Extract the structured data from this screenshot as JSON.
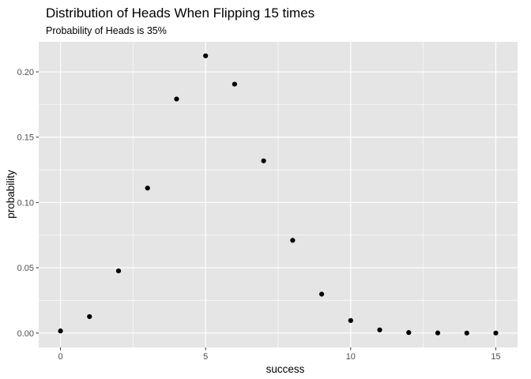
{
  "chart_data": {
    "type": "scatter",
    "title": "Distribution of Heads When Flipping 15 times",
    "subtitle": "Probability of Heads is 35%",
    "xlabel": "success",
    "ylabel": "probability",
    "xlim": [
      -0.75,
      15.75
    ],
    "ylim": [
      -0.011,
      0.223
    ],
    "x_ticks": [
      0,
      5,
      10,
      15
    ],
    "x_tick_labels": [
      "0",
      "5",
      "10",
      "15"
    ],
    "y_ticks": [
      0.0,
      0.05,
      0.1,
      0.15,
      0.2
    ],
    "y_tick_labels": [
      "0.00",
      "0.05",
      "0.10",
      "0.15",
      "0.20"
    ],
    "grid": true,
    "legend": "none",
    "point_color": "#000000",
    "panel_color": "#e5e5e5",
    "grid_color": "#ffffff",
    "x": [
      0,
      1,
      2,
      3,
      4,
      5,
      6,
      7,
      8,
      9,
      10,
      11,
      12,
      13,
      14,
      15
    ],
    "y": [
      0.0016,
      0.0126,
      0.0476,
      0.111,
      0.1792,
      0.2123,
      0.1906,
      0.1319,
      0.071,
      0.0298,
      0.0096,
      0.0024,
      0.0004,
      0.0001,
      0.0,
      0.0
    ]
  }
}
